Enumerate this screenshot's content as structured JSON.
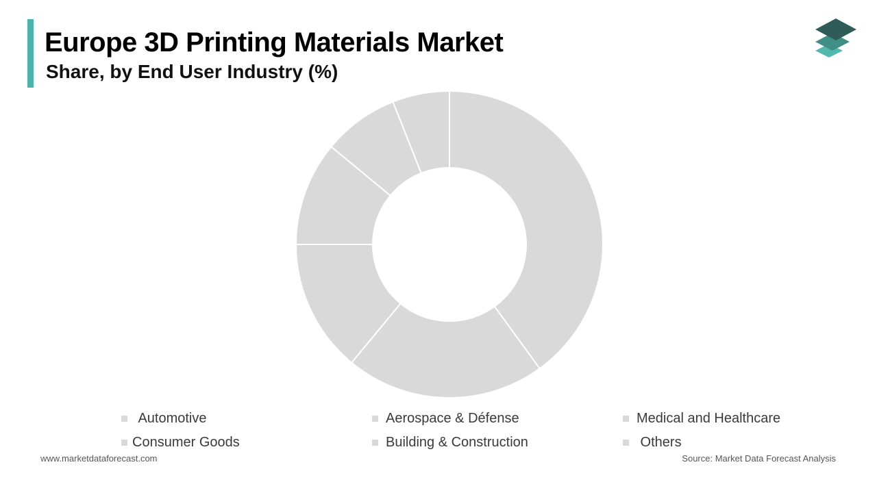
{
  "header": {
    "title": "Europe 3D Printing Materials Market",
    "subtitle": "Share, by End User Industry (%)"
  },
  "colors": {
    "accent": "#4DB3AE",
    "slice": "#D9D9D9",
    "slice_border": "#FFFFFF",
    "swatch": "#D9D9D9",
    "logo_dark": "#2F5C57",
    "logo_mid": "#3F8F86",
    "logo_light": "#53B8AE"
  },
  "logo": {
    "icon": "stacked-layers-icon"
  },
  "chart_data": {
    "type": "pie",
    "title": "",
    "inner_radius_ratio": 0.5,
    "categories": [
      "Automotive",
      "Aerospace & Défense",
      "Medical and Healthcare",
      "Consumer Goods",
      "Building & Construction",
      "Others"
    ],
    "slices": [
      {
        "label": "Automotive",
        "value": 40
      },
      {
        "label": "Aerospace & Défense",
        "value": 21
      },
      {
        "label": "Medical and Healthcare",
        "value": 14
      },
      {
        "label": "Consumer Goods",
        "value": 11
      },
      {
        "label": "Building & Construction",
        "value": 8
      },
      {
        "label": "Others",
        "value": 6
      }
    ],
    "legend": {
      "placement": "bottom",
      "items": [
        " Automotive",
        "Aerospace & Défense",
        "Medical and Healthcare",
        "Consumer Goods",
        "Building & Construction",
        " Others"
      ]
    }
  },
  "footer": {
    "website": "www.marketdataforecast.com",
    "source": "Source: Market Data Forecast Analysis"
  }
}
